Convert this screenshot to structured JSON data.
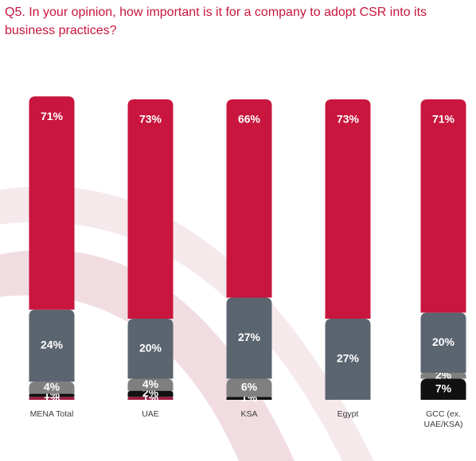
{
  "question": "Q5. In your opinion, how important is it for a company to adopt CSR into its business practices?",
  "chart_data": {
    "type": "bar",
    "stacked": true,
    "categories": [
      [
        "MENA Total"
      ],
      [
        "UAE"
      ],
      [
        "KSA"
      ],
      [
        "Egypt"
      ],
      [
        "GCC (ex.",
        "UAE/KSA)"
      ]
    ],
    "series": [
      {
        "color": "#9a1b3f",
        "values": [
          1,
          1,
          0,
          0,
          0
        ],
        "labels": [
          "1%",
          "1%",
          "",
          "",
          ""
        ]
      },
      {
        "color": "#111111",
        "values": [
          1,
          2,
          1,
          0,
          7
        ],
        "labels": [
          "1%",
          "2%",
          "1%",
          "",
          "7%"
        ]
      },
      {
        "color": "#7f7f7f",
        "values": [
          4,
          4,
          6,
          0,
          2
        ],
        "labels": [
          "4%",
          "4%",
          "6%",
          "",
          "2%"
        ]
      },
      {
        "color": "#5b6570",
        "values": [
          24,
          20,
          27,
          27,
          20
        ],
        "labels": [
          "24%",
          "20%",
          "27%",
          "27%",
          "20%"
        ]
      },
      {
        "color": "#c8163e",
        "values": [
          71,
          73,
          66,
          73,
          71
        ],
        "labels": [
          "71%",
          "73%",
          "66%",
          "73%",
          "71%"
        ]
      }
    ],
    "ylim": [
      0,
      100
    ],
    "grid": false,
    "legend": "none"
  },
  "colors": {
    "title": "#c8163e",
    "decoration": "#f3e4e7"
  }
}
